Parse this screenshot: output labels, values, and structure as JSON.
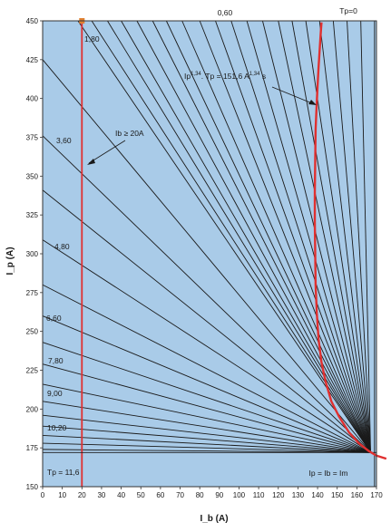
{
  "chart_data": {
    "type": "line",
    "title": "",
    "xlabel": "I_b (A)",
    "ylabel": "I_p (A)",
    "xlim": [
      0,
      170
    ],
    "ylim": [
      150,
      450
    ],
    "x_ticks": [
      0,
      10,
      20,
      30,
      40,
      50,
      60,
      70,
      80,
      90,
      100,
      110,
      120,
      130,
      140,
      150,
      160,
      170
    ],
    "y_ticks": [
      150,
      175,
      200,
      225,
      250,
      275,
      300,
      325,
      350,
      375,
      400,
      425,
      450
    ],
    "grid": false,
    "plot_background": "#a9cbe8",
    "fan_line_color": "#1a1a1a",
    "highlight_color": "#e03030",
    "convergence_point": [
      167,
      172
    ],
    "fan_start_points": [
      [
        18,
        450
      ],
      [
        25,
        450
      ],
      [
        33,
        450
      ],
      [
        40,
        450
      ],
      [
        48,
        450
      ],
      [
        56,
        450
      ],
      [
        63,
        450
      ],
      [
        71,
        450
      ],
      [
        80,
        450
      ],
      [
        88,
        450
      ],
      [
        96,
        450
      ],
      [
        104,
        450
      ],
      [
        112,
        450
      ],
      [
        120,
        450
      ],
      [
        127,
        450
      ],
      [
        134,
        450
      ],
      [
        141,
        450
      ],
      [
        148,
        450
      ],
      [
        155,
        450
      ],
      [
        162,
        450
      ],
      [
        0,
        425
      ],
      [
        0,
        376
      ],
      [
        0,
        341
      ],
      [
        0,
        309
      ],
      [
        0,
        280
      ],
      [
        0,
        260
      ],
      [
        0,
        243
      ],
      [
        0,
        229
      ],
      [
        0,
        216
      ],
      [
        0,
        205
      ],
      [
        0,
        196
      ],
      [
        0,
        189
      ],
      [
        0,
        183
      ],
      [
        0,
        178
      ],
      [
        0,
        174
      ]
    ],
    "curve_points": [
      [
        142,
        449
      ],
      [
        141.5,
        440
      ],
      [
        141,
        430
      ],
      [
        140.5,
        420
      ],
      [
        140,
        408
      ],
      [
        139.5,
        395
      ],
      [
        139,
        380
      ],
      [
        138.8,
        360
      ],
      [
        138.6,
        340
      ],
      [
        138.6,
        320
      ],
      [
        138.8,
        300
      ],
      [
        139,
        280
      ],
      [
        139.6,
        262
      ],
      [
        140.5,
        245
      ],
      [
        142,
        230
      ],
      [
        144,
        218
      ],
      [
        147,
        205
      ],
      [
        151,
        195
      ],
      [
        156,
        185
      ],
      [
        161,
        178
      ],
      [
        166,
        173
      ],
      [
        170,
        170
      ],
      [
        175,
        168
      ]
    ],
    "min_current_line_x": 20,
    "max_current_line_x": 169,
    "bottom_line_y": 172,
    "annotations": {
      "tp_top": "0,60",
      "tp_zero": "Tp=0",
      "label_180": "1,80",
      "label_360": "3,60",
      "label_480": "4,80",
      "label_660": "6,60",
      "label_780": "7,80",
      "label_900": "9,00",
      "label_1020": "10,20",
      "tp_bottom": "Tp = 11,6",
      "ib_min": "Ib ≥ 20A",
      "formula_a": "Ip",
      "formula_b": "1,34",
      "formula_c": ". Tp = 151,6 A",
      "formula_d": "1,34",
      "formula_e": " s",
      "equal_label": "Ip = Ib = Im"
    }
  }
}
